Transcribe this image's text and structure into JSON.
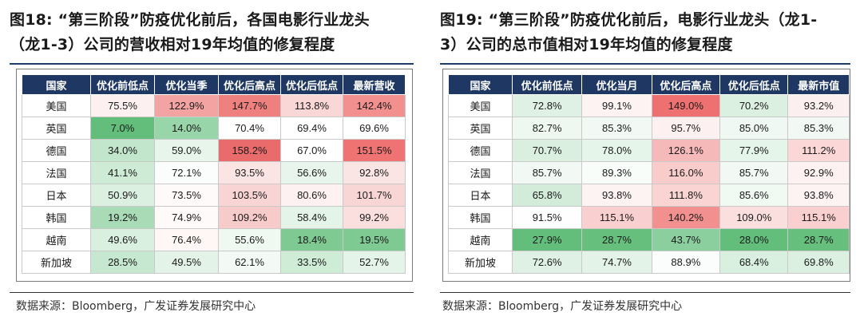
{
  "left": {
    "title_line1": "图18:  “第三阶段”防疫优化前后，各国电影行业龙头",
    "title_line2": "（龙1-3）公司的营收相对19年均值的修复程度",
    "headers": [
      "国家",
      "优化前低点",
      "优化当季",
      "优化后高点",
      "优化后低点",
      "最新营收"
    ],
    "rows": [
      {
        "country": "美国",
        "values": [
          "75.5%",
          "122.9%",
          "147.7%",
          "113.8%",
          "142.4%"
        ]
      },
      {
        "country": "英国",
        "values": [
          "7.0%",
          "14.0%",
          "70.4%",
          "69.4%",
          "69.6%"
        ]
      },
      {
        "country": "德国",
        "values": [
          "34.0%",
          "59.0%",
          "158.2%",
          "67.0%",
          "151.5%"
        ]
      },
      {
        "country": "法国",
        "values": [
          "41.1%",
          "72.1%",
          "93.5%",
          "56.6%",
          "92.8%"
        ]
      },
      {
        "country": "日本",
        "values": [
          "50.9%",
          "73.5%",
          "103.5%",
          "80.6%",
          "101.7%"
        ]
      },
      {
        "country": "韩国",
        "values": [
          "19.2%",
          "74.9%",
          "109.2%",
          "58.4%",
          "99.2%"
        ]
      },
      {
        "country": "越南",
        "values": [
          "49.6%",
          "76.4%",
          "55.6%",
          "18.4%",
          "19.5%"
        ]
      },
      {
        "country": "新加坡",
        "values": [
          "28.5%",
          "49.5%",
          "62.1%",
          "33.5%",
          "52.7%"
        ]
      }
    ],
    "colors": [
      [
        "#fcf0f0",
        "#f4a3a3",
        "#ef8080",
        "#f9d7d7",
        "#f28f8f"
      ],
      [
        "#63be7b",
        "#98d5a8",
        "#ffffff",
        "#ffffff",
        "#ffffff"
      ],
      [
        "#c2e6cc",
        "#e7f5eb",
        "#ea6b6b",
        "#ffffff",
        "#ef7373"
      ],
      [
        "#cdebd5",
        "#fafdfb",
        "#fbe4e4",
        "#e8f5ec",
        "#fbe4e4"
      ],
      [
        "#dbf0e1",
        "#fefaf9",
        "#f9d4d4",
        "#fdf1f1",
        "#f8d6d6"
      ],
      [
        "#a9dbb7",
        "#fefaf9",
        "#f8cbcb",
        "#e5f4e9",
        "#fbdede"
      ],
      [
        "#d9efdf",
        "#fef7f6",
        "#eff8f1",
        "#7fc992",
        "#7fca93"
      ],
      [
        "#c7e8d0",
        "#e3f3e8",
        "#f3faf5",
        "#cfecd7",
        "#e5f4e9"
      ]
    ],
    "source": "数据来源：Bloomberg，广发证券发展研究中心"
  },
  "right": {
    "title_line1": "图19:  “第三阶段”防疫优化前后，电影行业龙头（龙1-",
    "title_line2": "3）公司的总市值相对19年均值的修复程度",
    "headers": [
      "国家",
      "优化前低点",
      "优化当月",
      "优化后高点",
      "优化后低点",
      "最新市值"
    ],
    "rows": [
      {
        "country": "美国",
        "values": [
          "72.8%",
          "99.1%",
          "149.0%",
          "70.2%",
          "93.2%"
        ]
      },
      {
        "country": "英国",
        "values": [
          "82.7%",
          "85.3%",
          "95.7%",
          "85.0%",
          "85.3%"
        ]
      },
      {
        "country": "德国",
        "values": [
          "70.7%",
          "78.0%",
          "126.1%",
          "77.9%",
          "111.2%"
        ]
      },
      {
        "country": "法国",
        "values": [
          "85.7%",
          "89.3%",
          "116.0%",
          "85.7%",
          "92.9%"
        ]
      },
      {
        "country": "日本",
        "values": [
          "65.8%",
          "93.8%",
          "111.8%",
          "85.6%",
          "93.8%"
        ]
      },
      {
        "country": "韩国",
        "values": [
          "91.5%",
          "115.1%",
          "140.2%",
          "109.0%",
          "115.1%"
        ]
      },
      {
        "country": "越南",
        "values": [
          "27.9%",
          "28.7%",
          "43.7%",
          "28.0%",
          "28.7%"
        ]
      },
      {
        "country": "新加坡",
        "values": [
          "72.6%",
          "74.7%",
          "88.9%",
          "68.4%",
          "69.8%"
        ]
      }
    ],
    "colors": [
      [
        "#dff1e4",
        "#fdf3f3",
        "#ef7070",
        "#dcf0e2",
        "#fcefef"
      ],
      [
        "#eef8f1",
        "#f2f9f4",
        "#fdf0f0",
        "#eff8f2",
        "#f2f9f4"
      ],
      [
        "#daefe0",
        "#e6f5ea",
        "#f6b9b9",
        "#e6f5ea",
        "#fbd7d7"
      ],
      [
        "#f2f9f4",
        "#f9fdfa",
        "#f9cccc",
        "#f2f9f4",
        "#fdf1f1"
      ],
      [
        "#d3ecda",
        "#fdf3f3",
        "#fad3d3",
        "#f1f9f3",
        "#fdf3f3"
      ],
      [
        "#fffefe",
        "#f9cfcf",
        "#f29090",
        "#fbdfdf",
        "#f9cfcf"
      ],
      [
        "#63be7b",
        "#66bf7d",
        "#8ccf9e",
        "#63be7b",
        "#66bf7d"
      ],
      [
        "#dff1e4",
        "#e3f3e8",
        "#fbfdfc",
        "#d9efdf",
        "#dcf0e2"
      ]
    ],
    "source": "数据来源：Bloomberg，广发证券发展研究中心"
  }
}
